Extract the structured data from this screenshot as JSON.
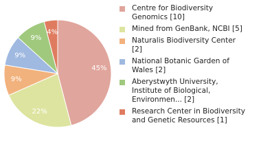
{
  "chart_data": {
    "type": "pie",
    "categories": [
      "Centre for Biodiversity Genomics [10]",
      "Mined from GenBank, NCBI [5]",
      "Naturalis Biodiversity Center [2]",
      "National Botanic Garden of Wales [2]",
      "Aberystwyth University, Institute of Biological, Environmen... [2]",
      "Research Center in Biodiversity and Genetic Resources [1]"
    ],
    "values": [
      45,
      22,
      9,
      9,
      9,
      4
    ],
    "value_labels": [
      "45%",
      "22%",
      "9%",
      "9%",
      "9%",
      "4%"
    ],
    "colors": [
      "#e0a59c",
      "#dde4a0",
      "#f2b27d",
      "#9fb9e0",
      "#a0c97e",
      "#df7c60"
    ]
  }
}
